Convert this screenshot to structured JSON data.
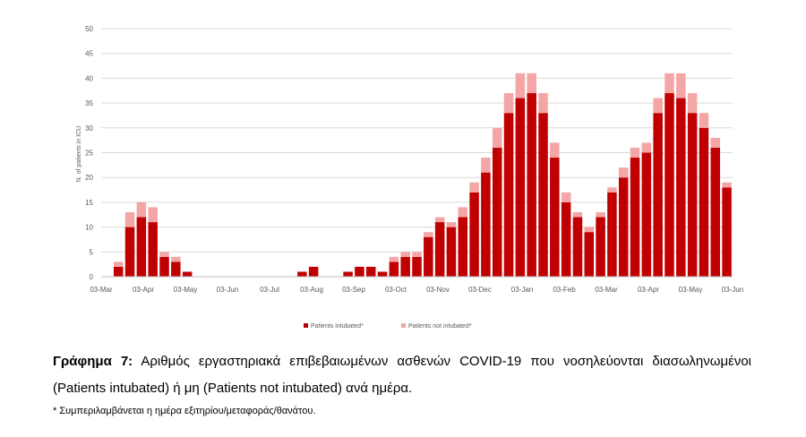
{
  "chart_data": {
    "type": "bar",
    "stacked": true,
    "title": "",
    "xlabel": "",
    "ylabel": "N. of patients in ICU",
    "ylim": [
      0,
      50
    ],
    "yticks": [
      0,
      5,
      10,
      15,
      20,
      25,
      30,
      35,
      40,
      45,
      50
    ],
    "x_tick_labels": [
      "03-Mar",
      "03-Apr",
      "03-May",
      "03-Jun",
      "03-Jul",
      "03-Aug",
      "03-Sep",
      "03-Oct",
      "03-Nov",
      "03-Dec",
      "03-Jan",
      "03-Feb",
      "03-Mar",
      "03-Apr",
      "03-May",
      "03-Jun"
    ],
    "grid": true,
    "legend_position": "bottom",
    "series": [
      {
        "name": "Patients intubated*",
        "color": "#c00000",
        "weekly_values": [
          0,
          2,
          10,
          12,
          11,
          4,
          3,
          1,
          0,
          0,
          0,
          0,
          0,
          0,
          0,
          0,
          0,
          1,
          2,
          0,
          0,
          1,
          2,
          2,
          1,
          3,
          4,
          4,
          8,
          11,
          10,
          12,
          17,
          21,
          26,
          33,
          36,
          37,
          33,
          24,
          15,
          12,
          9,
          12,
          17,
          20,
          24,
          25,
          33,
          37,
          36,
          33,
          30,
          26,
          18
        ]
      },
      {
        "name": "Patients not intubated*",
        "color": "#f4a6a6",
        "weekly_values": [
          0,
          1,
          3,
          3,
          3,
          1,
          1,
          0,
          0,
          0,
          0,
          0,
          0,
          0,
          0,
          0,
          0,
          0,
          0,
          0,
          0,
          0,
          0,
          0,
          0,
          1,
          1,
          1,
          1,
          1,
          1,
          2,
          2,
          3,
          4,
          4,
          5,
          4,
          4,
          3,
          2,
          1,
          1,
          1,
          1,
          2,
          2,
          2,
          3,
          4,
          5,
          4,
          3,
          2,
          1
        ]
      }
    ]
  },
  "caption": {
    "label": "Γράφημα 7:",
    "text": "Αριθμός εργαστηριακά επιβεβαιωμένων ασθενών COVID-19 που νοσηλεύονται διασωληνωμένοι (Patients intubated) ή μη (Patients not intubated) ανά ημέρα."
  },
  "footnote": "* Συμπεριλαμβάνεται η ημέρα εξιτηρίου/μεταφοράς/θανάτου."
}
